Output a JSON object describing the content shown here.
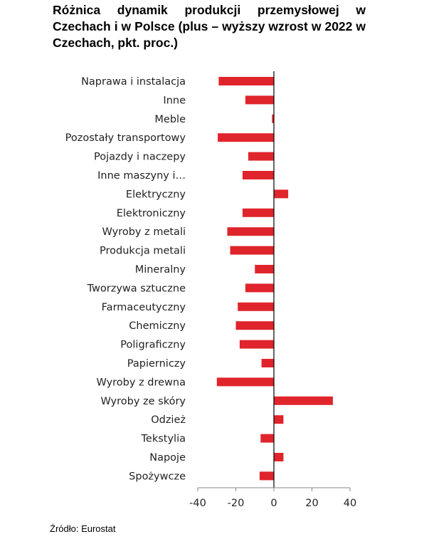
{
  "chart_data": {
    "type": "bar",
    "orientation": "horizontal",
    "title": "Różnica dynamik produkcji przemysłowej w Czechach i w Polsce (plus – wyższy wzrost w 2022 w Czechach, pkt. proc.)",
    "source": "Źródło: Eurostat",
    "categories": [
      "Naprawa i instalacja",
      "Inne",
      "Meble",
      "Pozostały transportowy",
      "Pojazdy i naczepy",
      "Inne maszyny i…",
      "Elektryczny",
      "Elektroniczny",
      "Wyroby z metali",
      "Produkcja metali",
      "Mineralny",
      "Tworzywa sztuczne",
      "Farmaceutyczny",
      "Chemiczny",
      "Poligraficzny",
      "Papierniczy",
      "Wyroby z drewna",
      "Wyroby ze skóry",
      "Odzież",
      "Tekstylia",
      "Napoje",
      "Spożywcze"
    ],
    "values": [
      -29,
      -15,
      -1,
      -29.5,
      -13.5,
      -16.5,
      7.5,
      -16.5,
      -24.5,
      -23,
      -10,
      -15,
      -19,
      -20,
      -18,
      -6.5,
      -30,
      31,
      5,
      -7,
      5,
      -7.5
    ],
    "xlim": [
      -40,
      40
    ],
    "xticks": [
      "-40",
      "-20",
      "0",
      "20",
      "40"
    ],
    "xtick_values": [
      -40,
      -20,
      0,
      20,
      40
    ],
    "bar_color": "#e0242b",
    "grid": false,
    "legend": "none"
  }
}
